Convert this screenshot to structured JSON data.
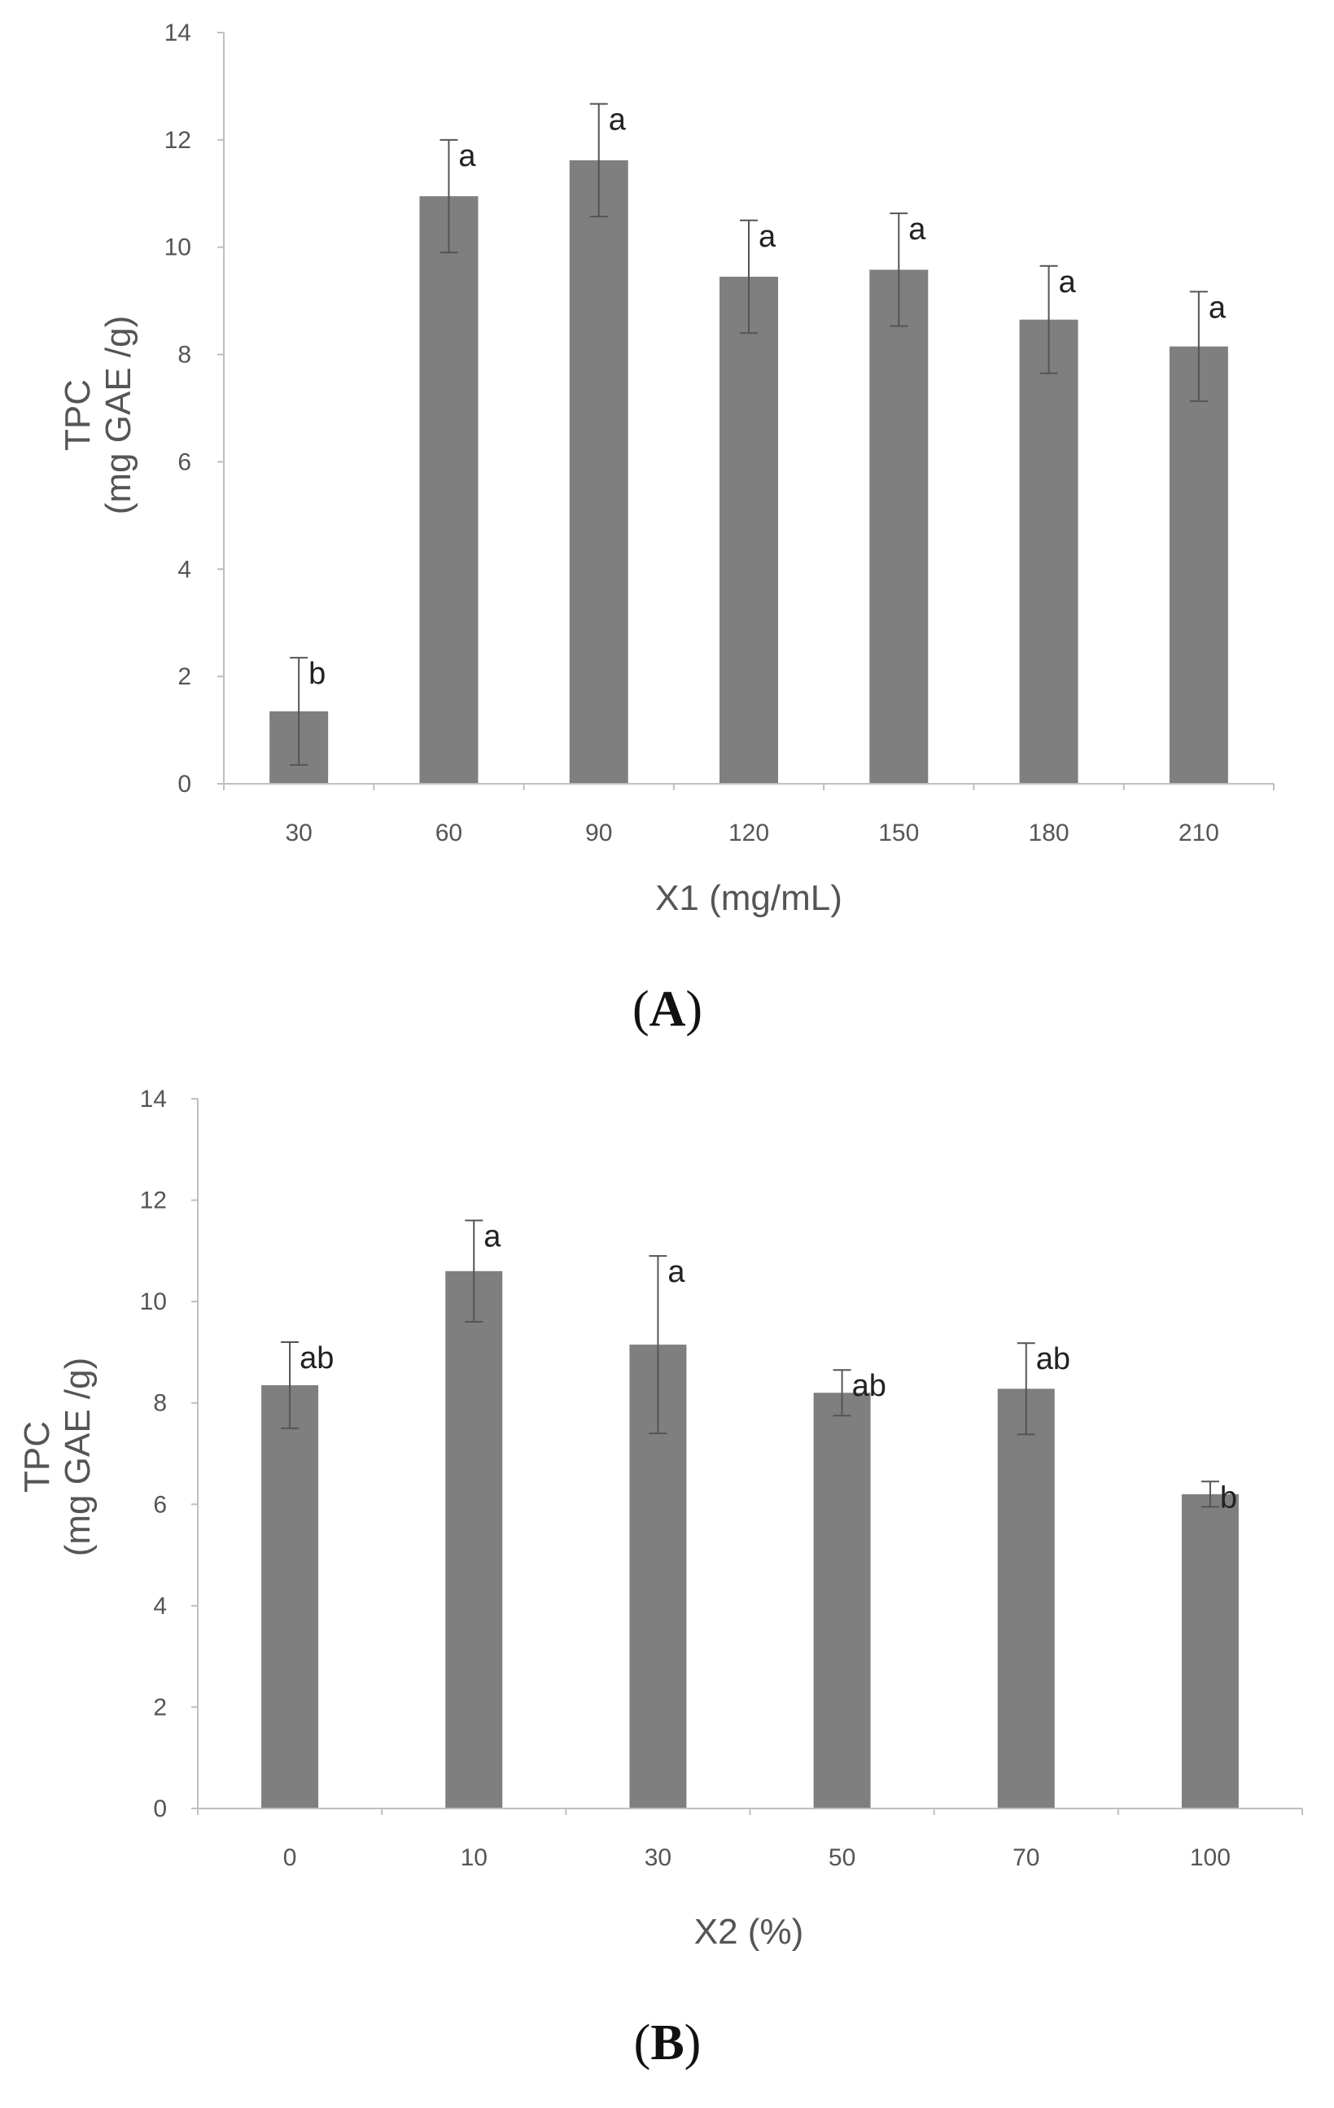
{
  "chart_data": [
    {
      "type": "bar",
      "panel_label": "A",
      "categories": [
        "30",
        "60",
        "90",
        "120",
        "150",
        "180",
        "210"
      ],
      "values": [
        1.35,
        10.95,
        11.62,
        9.45,
        9.58,
        8.65,
        8.15
      ],
      "errors": [
        1.0,
        1.05,
        1.05,
        1.05,
        1.05,
        1.0,
        1.02
      ],
      "significance": [
        "b",
        "a",
        "a",
        "a",
        "a",
        "a",
        "a"
      ],
      "title": "",
      "xlabel": "X1 (mg/mL)",
      "ylabel_line1": "TPC",
      "ylabel_line2": "(mg GAE /g)",
      "ylim": [
        0,
        14
      ],
      "yticks": [
        0,
        2,
        4,
        6,
        8,
        10,
        12,
        14
      ],
      "bar_color": "#7f7f7f",
      "grid": false,
      "legend": "none"
    },
    {
      "type": "bar",
      "panel_label": "B",
      "categories": [
        "0",
        "10",
        "30",
        "50",
        "70",
        "100"
      ],
      "values": [
        8.35,
        10.6,
        9.15,
        8.2,
        8.28,
        6.2
      ],
      "errors": [
        0.85,
        1.0,
        1.75,
        0.45,
        0.9,
        0.25
      ],
      "significance": [
        "ab",
        "a",
        "a",
        "ab",
        "ab",
        "b"
      ],
      "title": "",
      "xlabel": "X2 (%)",
      "ylabel_line1": "TPC",
      "ylabel_line2": "(mg GAE /g)",
      "ylim": [
        0,
        14
      ],
      "yticks": [
        0,
        2,
        4,
        6,
        8,
        10,
        12,
        14
      ],
      "bar_color": "#7f7f7f",
      "grid": false,
      "legend": "none"
    }
  ]
}
